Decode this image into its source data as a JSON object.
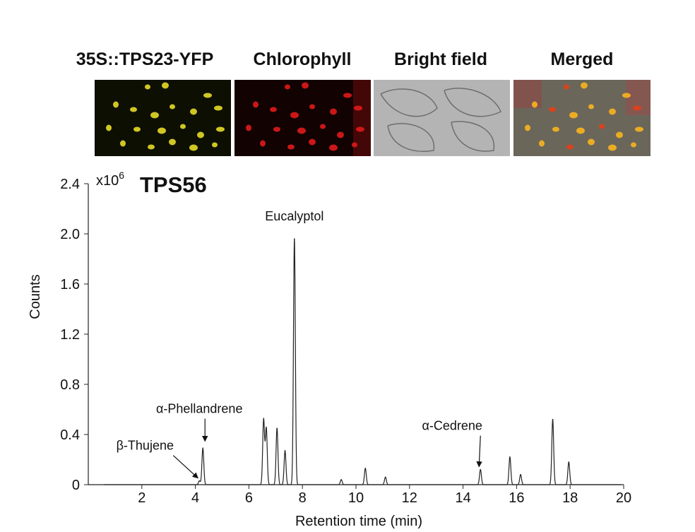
{
  "panels": [
    {
      "title": "35S::TPS23-YFP",
      "kind": "yfp"
    },
    {
      "title": "Chlorophyll",
      "kind": "chl"
    },
    {
      "title": "Bright field",
      "kind": "bf"
    },
    {
      "title": "Merged",
      "kind": "merged"
    }
  ],
  "colors": {
    "yfp": "#f2e62a",
    "chlorophyll": "#e01a1a",
    "brightfield_bg": "#b4b4b4",
    "trace": "#222222"
  },
  "chart_data": {
    "type": "line",
    "title": "TPS56",
    "multiplier": "x10",
    "multiplier_exp": "6",
    "xlabel": "Retention time (min)",
    "ylabel": "Counts",
    "xlim": [
      0,
      20
    ],
    "ylim": [
      0,
      2.4
    ],
    "xticks": [
      "2",
      "4",
      "6",
      "8",
      "10",
      "12",
      "14",
      "16",
      "18",
      "20"
    ],
    "yticks": [
      "0",
      "0.4",
      "0.8",
      "1.2",
      "1.6",
      "2.0",
      "2.4"
    ],
    "grid": false,
    "peaks": [
      {
        "x": 4.15,
        "y": 0.03
      },
      {
        "x": 4.28,
        "y": 0.29
      },
      {
        "x": 6.55,
        "y": 0.52
      },
      {
        "x": 6.65,
        "y": 0.45
      },
      {
        "x": 7.05,
        "y": 0.45
      },
      {
        "x": 7.35,
        "y": 0.27
      },
      {
        "x": 7.7,
        "y": 1.96
      },
      {
        "x": 9.45,
        "y": 0.04
      },
      {
        "x": 10.35,
        "y": 0.13
      },
      {
        "x": 11.1,
        "y": 0.06
      },
      {
        "x": 14.65,
        "y": 0.12
      },
      {
        "x": 15.75,
        "y": 0.22
      },
      {
        "x": 16.15,
        "y": 0.08
      },
      {
        "x": 17.35,
        "y": 0.52
      },
      {
        "x": 17.95,
        "y": 0.18
      }
    ],
    "annotations": [
      {
        "label": "Eucalyptol",
        "x": 7.7,
        "y": 1.96,
        "arrow": false
      },
      {
        "label": "α-Phellandrene",
        "x": 4.28,
        "y": 0.29,
        "arrow": true
      },
      {
        "label": "β-Thujene",
        "x": 4.15,
        "y": 0.03,
        "arrow": true
      },
      {
        "label": "α-Cedrene",
        "x": 14.65,
        "y": 0.12,
        "arrow": true
      }
    ]
  }
}
